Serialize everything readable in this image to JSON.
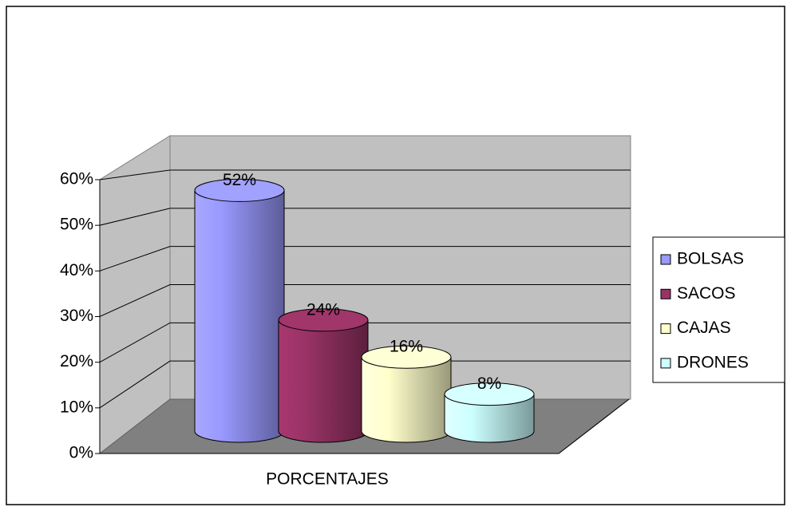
{
  "chart_data": {
    "type": "bar3d",
    "categories": [
      "PORCENTAJES"
    ],
    "series": [
      {
        "name": "BOLSAS",
        "color": "#9999ff",
        "values": [
          52
        ],
        "value_labels": [
          "52%"
        ]
      },
      {
        "name": "SACOS",
        "color": "#993366",
        "values": [
          24
        ],
        "value_labels": [
          "24%"
        ]
      },
      {
        "name": "CAJAS",
        "color": "#ffffcc",
        "values": [
          16
        ],
        "value_labels": [
          "16%"
        ]
      },
      {
        "name": "DRONES",
        "color": "#ccffff",
        "values": [
          8
        ],
        "value_labels": [
          "8%"
        ]
      }
    ],
    "ylim": [
      0,
      60
    ],
    "yticks": [
      {
        "value": 0,
        "label": "0%"
      },
      {
        "value": 10,
        "label": "10%"
      },
      {
        "value": 20,
        "label": "20%"
      },
      {
        "value": 30,
        "label": "30%"
      },
      {
        "value": 40,
        "label": "40%"
      },
      {
        "value": 50,
        "label": "50%"
      },
      {
        "value": 60,
        "label": "60%"
      }
    ],
    "grid": true,
    "legend": "right"
  }
}
